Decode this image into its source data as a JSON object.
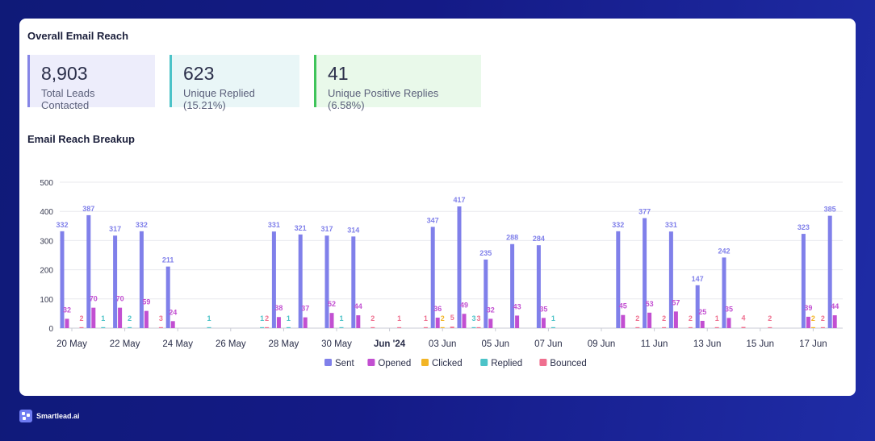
{
  "card": {
    "title": "Overall Email Reach",
    "breakdown_title": "Email Reach Breakup"
  },
  "stats": [
    {
      "value": "8,903",
      "label": "Total Leads Contacted"
    },
    {
      "value": "623",
      "label": "Unique Replied (15.21%)"
    },
    {
      "value": "41",
      "label": "Unique Positive Replies (6.58%)"
    }
  ],
  "brand": {
    "name": "Smartlead.ai"
  },
  "colors": {
    "sent": "#8080ea",
    "opened": "#c24fd1",
    "clicked": "#f2b526",
    "replied": "#4cc3c8",
    "bounced": "#ef6f8f"
  },
  "chart_data": {
    "type": "bar",
    "ylim": [
      0,
      500
    ],
    "yticks": [
      0,
      100,
      200,
      300,
      400,
      500
    ],
    "grid": true,
    "legend_position": "bottom-center",
    "xtick_labels": [
      "20 May",
      "22 May",
      "24 May",
      "26 May",
      "28 May",
      "30 May",
      "Jun '24",
      "03 Jun",
      "05 Jun",
      "07 Jun",
      "09 Jun",
      "11 Jun",
      "13 Jun",
      "15 Jun",
      "17 Jun"
    ],
    "xtick_positions": [
      0,
      2,
      4,
      6,
      8,
      10,
      12,
      14,
      16,
      18,
      20,
      22,
      24,
      26,
      28
    ],
    "categories": [
      "20 May",
      "21 May",
      "22 May",
      "23 May",
      "24 May",
      "25 May",
      "26 May",
      "27 May",
      "28 May",
      "29 May",
      "30 May",
      "31 May",
      "01 Jun",
      "02 Jun",
      "03 Jun",
      "04 Jun",
      "05 Jun",
      "06 Jun",
      "07 Jun",
      "08 Jun",
      "09 Jun",
      "10 Jun",
      "11 Jun",
      "12 Jun",
      "13 Jun",
      "14 Jun",
      "15 Jun",
      "16 Jun",
      "17 Jun",
      "18 Jun"
    ],
    "series": [
      {
        "name": "Sent",
        "values": [
          332,
          387,
          317,
          332,
          211,
          0,
          0,
          0,
          331,
          321,
          317,
          314,
          0,
          0,
          347,
          417,
          235,
          288,
          284,
          0,
          0,
          332,
          377,
          331,
          147,
          242,
          0,
          0,
          323,
          385
        ]
      },
      {
        "name": "Opened",
        "values": [
          32,
          70,
          70,
          59,
          24,
          0,
          0,
          0,
          38,
          37,
          52,
          44,
          0,
          0,
          36,
          49,
          32,
          43,
          35,
          0,
          0,
          45,
          53,
          57,
          25,
          35,
          0,
          0,
          39,
          44
        ]
      },
      {
        "name": "Clicked",
        "values": [
          0,
          0,
          0,
          0,
          0,
          0,
          0,
          0,
          0,
          0,
          0,
          0,
          0,
          0,
          2,
          0,
          0,
          0,
          0,
          0,
          0,
          0,
          0,
          0,
          0,
          0,
          0,
          0,
          2,
          0
        ]
      },
      {
        "name": "Replied",
        "values": [
          0,
          1,
          2,
          0,
          0,
          1,
          0,
          1,
          1,
          0,
          1,
          0,
          0,
          0,
          0,
          3,
          0,
          0,
          1,
          0,
          0,
          0,
          0,
          0,
          0,
          0,
          0,
          0,
          0,
          0
        ]
      },
      {
        "name": "Bounced",
        "values": [
          2,
          0,
          0,
          3,
          0,
          0,
          0,
          2,
          0,
          0,
          0,
          2,
          1,
          1,
          5,
          3,
          0,
          0,
          0,
          0,
          0,
          2,
          2,
          2,
          1,
          4,
          2,
          0,
          2,
          0
        ]
      }
    ]
  }
}
